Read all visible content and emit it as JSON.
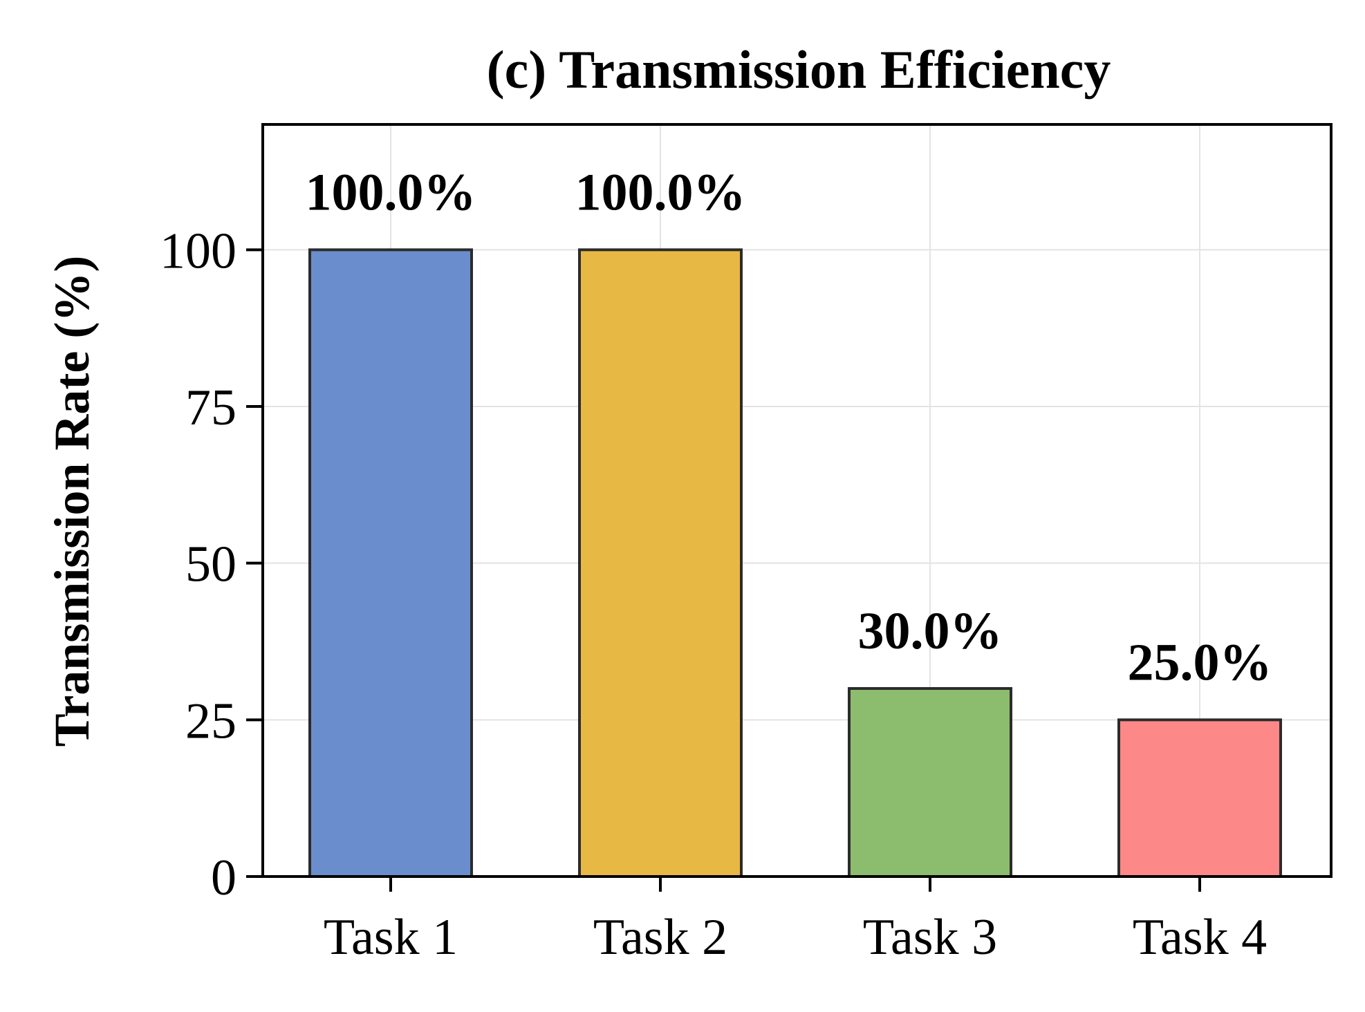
{
  "chart_data": {
    "type": "bar",
    "title": "(c) Transmission Efficiency",
    "xlabel": "",
    "ylabel": "Transmission Rate (%)",
    "categories": [
      "Task 1",
      "Task 2",
      "Task 3",
      "Task 4"
    ],
    "values": [
      100.0,
      100.0,
      30.0,
      25.0
    ],
    "data_labels": [
      "100.0%",
      "100.0%",
      "30.0%",
      "25.0%"
    ],
    "bar_colors": [
      "#6a8ecd",
      "#e8b845",
      "#8cbd6e",
      "#fd8888"
    ],
    "ylim": [
      0,
      120
    ],
    "yticks": [
      0,
      25,
      50,
      75,
      100
    ],
    "ytick_labels": [
      "0",
      "25",
      "50",
      "75",
      "100"
    ],
    "grid": true,
    "legend": "none"
  }
}
